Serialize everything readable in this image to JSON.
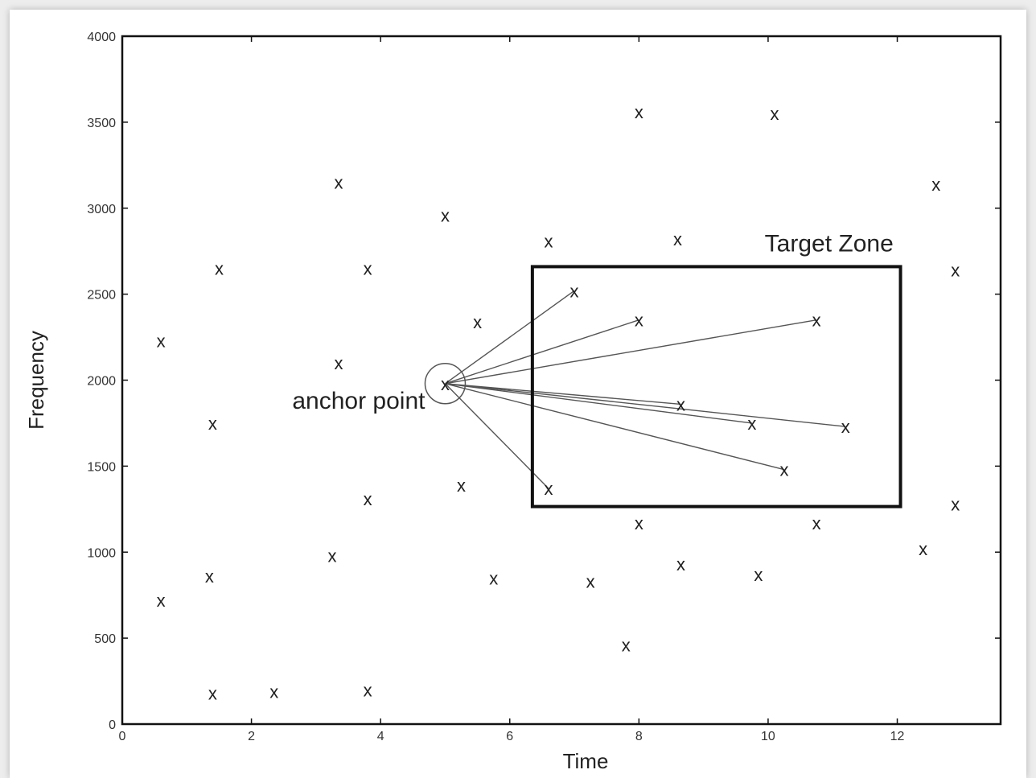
{
  "chart_data": {
    "type": "scatter",
    "xlabel": "Time",
    "ylabel": "Frequency",
    "xlim": [
      0,
      13.6
    ],
    "ylim": [
      0,
      4000
    ],
    "xticks": [
      0,
      2,
      4,
      6,
      8,
      10,
      12
    ],
    "yticks": [
      0,
      500,
      1000,
      1500,
      2000,
      2500,
      3000,
      3500,
      4000
    ],
    "marker": "x",
    "colors": {
      "ink": "#222222",
      "line": "#555555"
    },
    "points": [
      {
        "x": 0.6,
        "y": 2230
      },
      {
        "x": 0.6,
        "y": 720
      },
      {
        "x": 1.35,
        "y": 860
      },
      {
        "x": 1.4,
        "y": 1750
      },
      {
        "x": 1.5,
        "y": 2650
      },
      {
        "x": 1.4,
        "y": 180
      },
      {
        "x": 2.35,
        "y": 190
      },
      {
        "x": 3.25,
        "y": 980
      },
      {
        "x": 3.35,
        "y": 3150
      },
      {
        "x": 3.35,
        "y": 2100
      },
      {
        "x": 3.8,
        "y": 2650
      },
      {
        "x": 3.8,
        "y": 1310
      },
      {
        "x": 3.8,
        "y": 200
      },
      {
        "x": 5.0,
        "y": 2960
      },
      {
        "x": 5.0,
        "y": 1980
      },
      {
        "x": 5.25,
        "y": 1390
      },
      {
        "x": 5.5,
        "y": 2340
      },
      {
        "x": 5.75,
        "y": 850
      },
      {
        "x": 6.6,
        "y": 2810
      },
      {
        "x": 6.6,
        "y": 1370
      },
      {
        "x": 7.0,
        "y": 2520
      },
      {
        "x": 7.25,
        "y": 830
      },
      {
        "x": 7.8,
        "y": 460
      },
      {
        "x": 8.0,
        "y": 3560
      },
      {
        "x": 8.0,
        "y": 2350
      },
      {
        "x": 8.0,
        "y": 1170
      },
      {
        "x": 8.6,
        "y": 2820
      },
      {
        "x": 8.65,
        "y": 1860
      },
      {
        "x": 8.65,
        "y": 930
      },
      {
        "x": 9.75,
        "y": 1750
      },
      {
        "x": 9.85,
        "y": 870
      },
      {
        "x": 10.1,
        "y": 3550
      },
      {
        "x": 10.25,
        "y": 1480
      },
      {
        "x": 10.75,
        "y": 2350
      },
      {
        "x": 10.75,
        "y": 1170
      },
      {
        "x": 11.2,
        "y": 1730
      },
      {
        "x": 12.4,
        "y": 1020
      },
      {
        "x": 12.6,
        "y": 3140
      },
      {
        "x": 12.9,
        "y": 2640
      },
      {
        "x": 12.9,
        "y": 1280
      }
    ],
    "anchor": {
      "x": 5.0,
      "y": 1980,
      "label": "anchor point"
    },
    "target_zone": {
      "x0": 6.35,
      "x1": 12.05,
      "y0": 1265,
      "y1": 2660,
      "label": "Target Zone"
    },
    "pairs": [
      {
        "x": 7.0,
        "y": 2520
      },
      {
        "x": 8.0,
        "y": 2350
      },
      {
        "x": 10.75,
        "y": 2350
      },
      {
        "x": 8.65,
        "y": 1860
      },
      {
        "x": 9.75,
        "y": 1750
      },
      {
        "x": 11.2,
        "y": 1730
      },
      {
        "x": 10.25,
        "y": 1480
      },
      {
        "x": 6.6,
        "y": 1370
      }
    ]
  }
}
